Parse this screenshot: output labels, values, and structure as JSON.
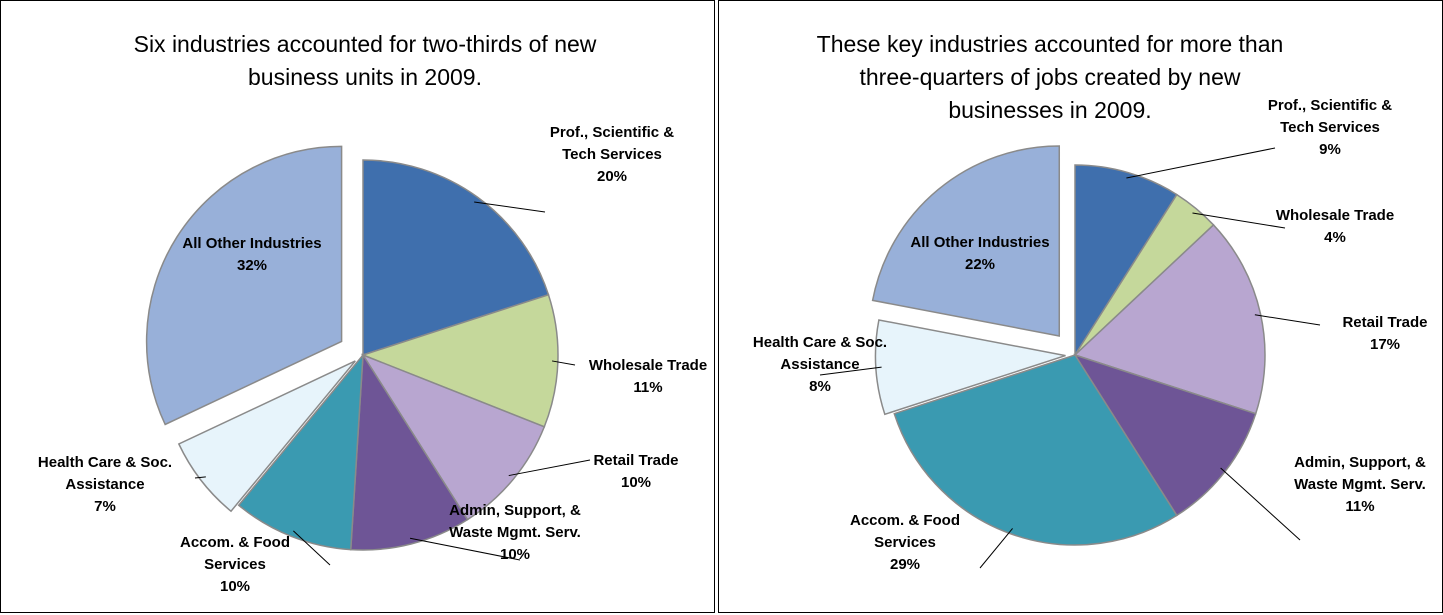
{
  "chart_data": [
    {
      "type": "pie",
      "title": "Six industries accounted for two-thirds of new business units in 2009.",
      "categories": [
        "Prof., Scientific & Tech Services",
        "Wholesale Trade",
        "Retail Trade",
        "Admin, Support, & Waste Mgmt. Serv.",
        "Accom. & Food Services",
        "Health Care & Soc. Assistance",
        "All Other Industries"
      ],
      "values": [
        20,
        11,
        10,
        10,
        10,
        7,
        32
      ],
      "value_labels": [
        "20%",
        "11%",
        "10%",
        "10%",
        "10%",
        "7%",
        "32%"
      ],
      "colors": [
        "#3f6fad",
        "#c5d89b",
        "#b8a6d0",
        "#6e5596",
        "#3a9ab1",
        "#e7f4fb",
        "#98b0d9"
      ],
      "explode": [
        0,
        0,
        0,
        0,
        0,
        0.05,
        0.13
      ]
    },
    {
      "type": "pie",
      "title": "These key industries accounted for more than three-quarters of jobs created by new businesses in 2009.",
      "categories": [
        "Prof., Scientific & Tech Services",
        "Wholesale Trade",
        "Retail Trade",
        "Admin, Support, & Waste Mgmt. Serv.",
        "Accom. & Food Services",
        "Health Care & Soc. Assistance",
        "All Other Industries"
      ],
      "values": [
        9,
        4,
        17,
        11,
        29,
        8,
        22
      ],
      "value_labels": [
        "9%",
        "4%",
        "17%",
        "11%",
        "29%",
        "8%",
        "22%"
      ],
      "colors": [
        "#3f6fad",
        "#c5d89b",
        "#b8a6d0",
        "#6e5596",
        "#3a9ab1",
        "#e7f4fb",
        "#98b0d9"
      ],
      "explode": [
        0,
        0,
        0,
        0,
        0,
        0.05,
        0.13
      ]
    }
  ]
}
